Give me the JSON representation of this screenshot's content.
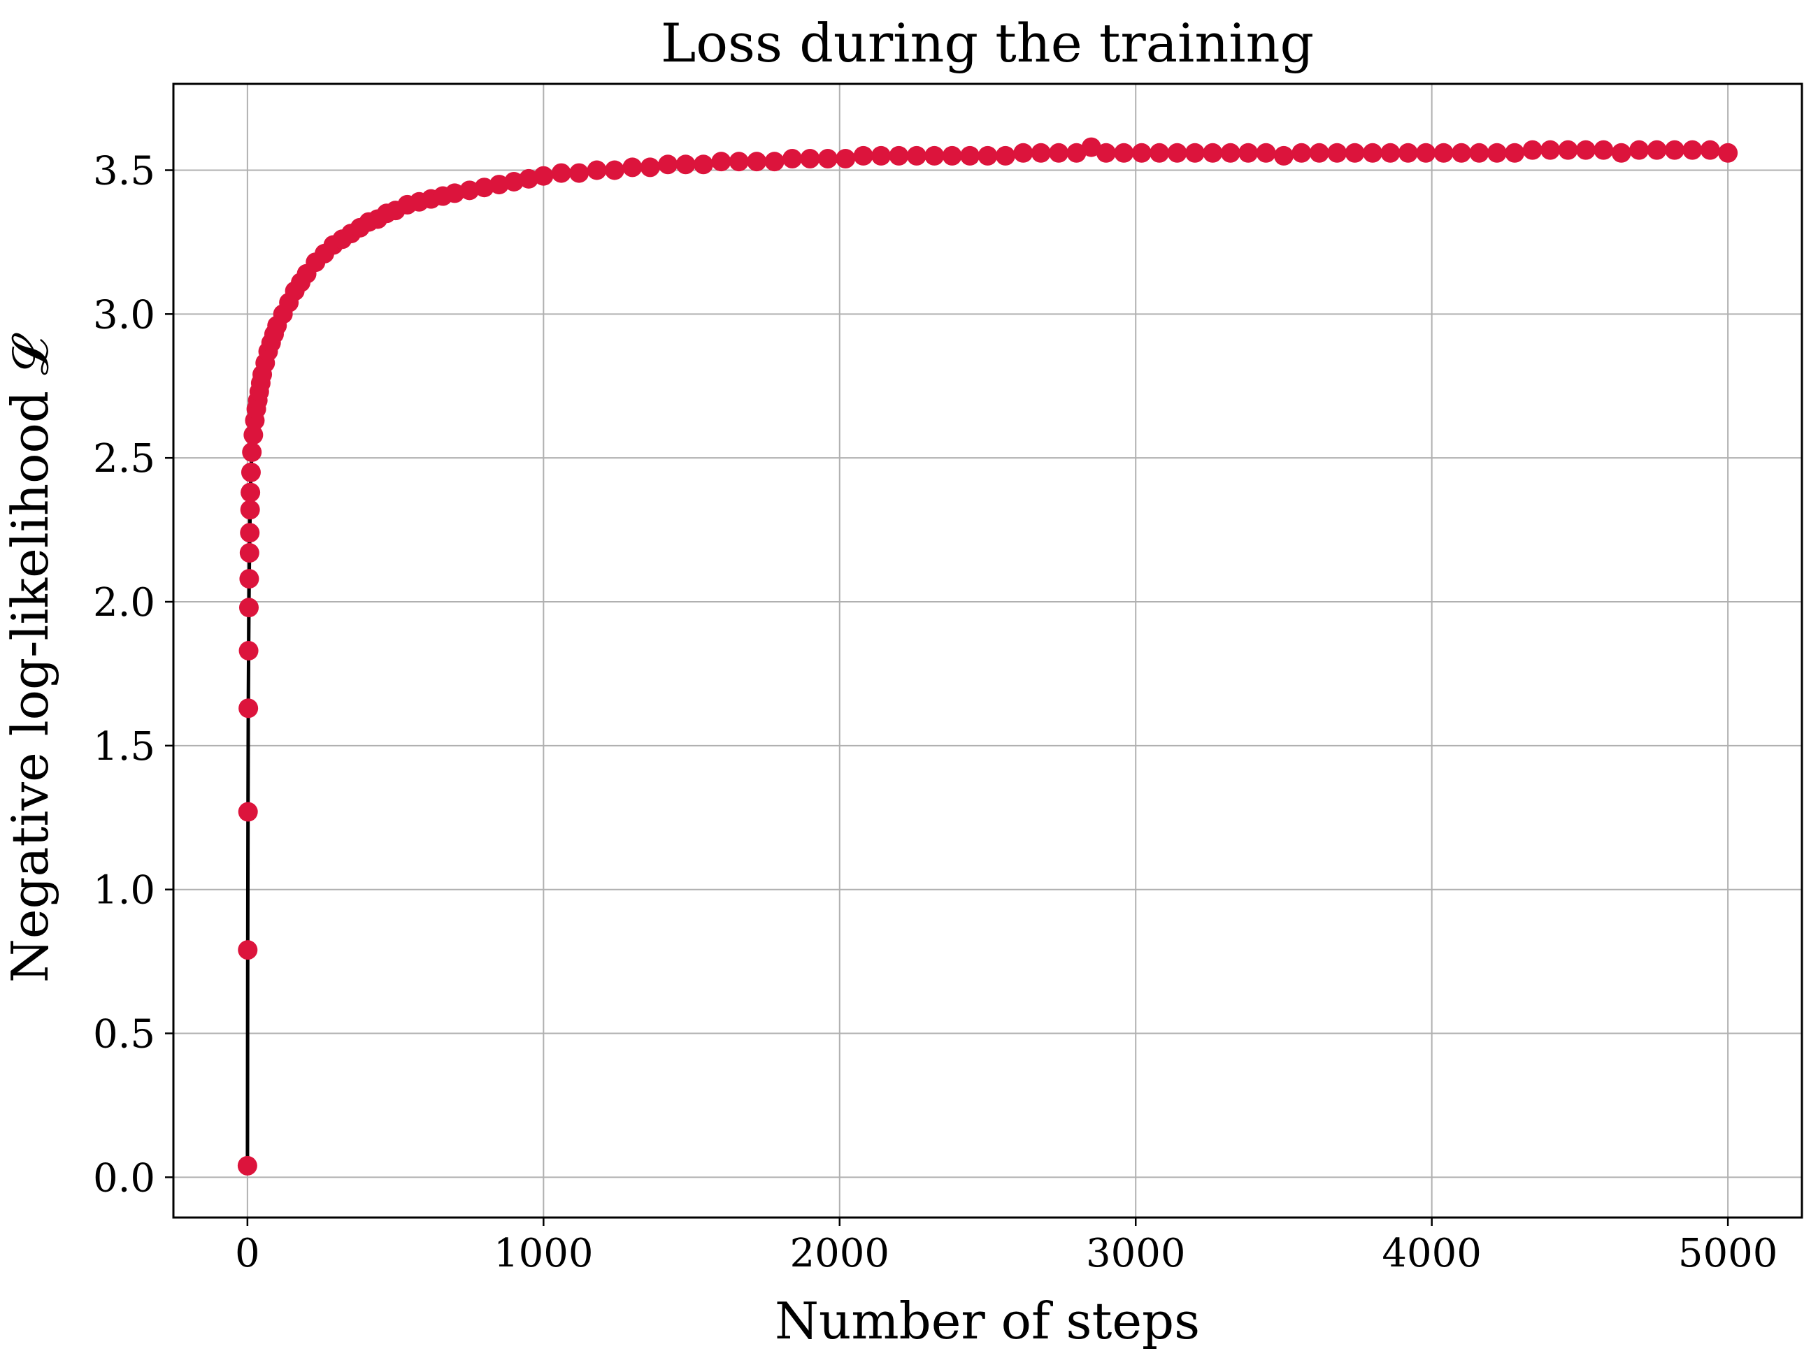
{
  "chart_data": {
    "type": "line",
    "title": "Loss during the training",
    "xlabel": "Number of steps",
    "ylabel": "Negative log-likelihood 𝓛",
    "xlim": [
      -250,
      5250
    ],
    "ylim": [
      -0.14,
      3.8
    ],
    "xticks": [
      0,
      1000,
      2000,
      3000,
      4000,
      5000
    ],
    "xtick_labels": [
      "0",
      "1000",
      "2000",
      "3000",
      "4000",
      "5000"
    ],
    "yticks": [
      0.0,
      0.5,
      1.0,
      1.5,
      2.0,
      2.5,
      3.0,
      3.5
    ],
    "ytick_labels": [
      "0.0",
      "0.5",
      "1.0",
      "1.5",
      "2.0",
      "2.5",
      "3.0",
      "3.5"
    ],
    "grid": true,
    "legend": "none",
    "series": [
      {
        "line_color": "#000000",
        "marker_color": "#dc143c",
        "x": [
          0,
          1,
          2,
          3,
          4,
          5,
          6,
          7,
          8,
          9,
          10,
          12,
          15,
          20,
          25,
          30,
          35,
          40,
          45,
          50,
          60,
          70,
          80,
          90,
          100,
          120,
          140,
          160,
          180,
          200,
          230,
          260,
          290,
          320,
          350,
          380,
          410,
          440,
          470,
          500,
          540,
          580,
          620,
          660,
          700,
          750,
          800,
          850,
          900,
          950,
          1000,
          1060,
          1120,
          1180,
          1240,
          1300,
          1360,
          1420,
          1480,
          1540,
          1600,
          1660,
          1720,
          1780,
          1840,
          1900,
          1960,
          2020,
          2080,
          2140,
          2200,
          2260,
          2320,
          2380,
          2440,
          2500,
          2560,
          2620,
          2680,
          2740,
          2800,
          2850,
          2900,
          2960,
          3020,
          3080,
          3140,
          3200,
          3260,
          3320,
          3380,
          3440,
          3500,
          3560,
          3620,
          3680,
          3740,
          3800,
          3860,
          3920,
          3980,
          4040,
          4100,
          4160,
          4220,
          4280,
          4340,
          4400,
          4460,
          4520,
          4580,
          4640,
          4700,
          4760,
          4820,
          4880,
          4940,
          5000
        ],
        "values": [
          0.04,
          0.79,
          1.27,
          1.63,
          1.83,
          1.98,
          2.08,
          2.17,
          2.24,
          2.32,
          2.38,
          2.45,
          2.52,
          2.58,
          2.63,
          2.67,
          2.7,
          2.73,
          2.76,
          2.79,
          2.83,
          2.87,
          2.9,
          2.93,
          2.96,
          3.0,
          3.04,
          3.08,
          3.11,
          3.14,
          3.18,
          3.21,
          3.24,
          3.26,
          3.28,
          3.3,
          3.32,
          3.33,
          3.35,
          3.36,
          3.38,
          3.39,
          3.4,
          3.41,
          3.42,
          3.43,
          3.44,
          3.45,
          3.46,
          3.47,
          3.48,
          3.49,
          3.49,
          3.5,
          3.5,
          3.51,
          3.51,
          3.52,
          3.52,
          3.52,
          3.53,
          3.53,
          3.53,
          3.53,
          3.54,
          3.54,
          3.54,
          3.54,
          3.55,
          3.55,
          3.55,
          3.55,
          3.55,
          3.55,
          3.55,
          3.55,
          3.55,
          3.56,
          3.56,
          3.56,
          3.56,
          3.58,
          3.56,
          3.56,
          3.56,
          3.56,
          3.56,
          3.56,
          3.56,
          3.56,
          3.56,
          3.56,
          3.55,
          3.56,
          3.56,
          3.56,
          3.56,
          3.56,
          3.56,
          3.56,
          3.56,
          3.56,
          3.56,
          3.56,
          3.56,
          3.56,
          3.57,
          3.57,
          3.57,
          3.57,
          3.57,
          3.56,
          3.57,
          3.57,
          3.57,
          3.57,
          3.57,
          3.56
        ]
      }
    ]
  }
}
